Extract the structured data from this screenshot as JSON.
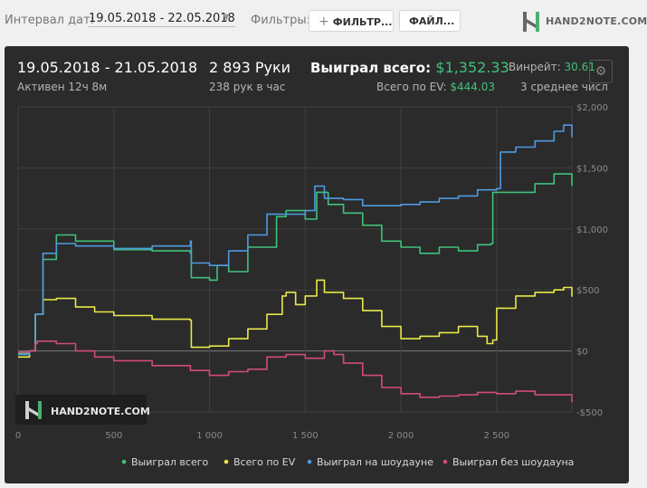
{
  "toolbar": {
    "interval_label": "Интервал дат:",
    "interval_value": "19.05.2018 - 22.05.2018",
    "filters_label": "Фильтры:",
    "filter_button": "ФИЛЬТР...",
    "files_button": "ФАЙЛ..."
  },
  "brand": {
    "logo_text": "HAND2NOTE.COM",
    "watermark_text": "HAND2NOTE.COM"
  },
  "summary": {
    "date_range": "19.05.2018 - 21.05.2018",
    "active": "Активен 12ч 8м",
    "hands": "2 893 Руки",
    "hands_per_hour": "238 рук в час",
    "won_label": "Выиграл всего:",
    "won_value": "$1,352.33",
    "ev_label": "Всего по EV:",
    "ev_value": "$444.03",
    "winrate_label": "Винрейт:",
    "winrate_value": "30.61",
    "winrate_sub": "3 среднее числ"
  },
  "chart_data": {
    "type": "line",
    "xlim": [
      0,
      2893
    ],
    "ylim": [
      -500,
      2000
    ],
    "x_ticks": [
      0,
      500,
      1000,
      1500,
      2000,
      2500
    ],
    "x_tick_labels": [
      "0",
      "500",
      "1 000",
      "1 500",
      "2 000",
      "2 500"
    ],
    "y_ticks": [
      -500,
      0,
      500,
      1000,
      1500,
      2000
    ],
    "y_tick_labels": [
      "-$500",
      "$0",
      "$500",
      "$1,000",
      "$1,500",
      "$2,000"
    ],
    "grid": true,
    "legend_position": "bottom",
    "series": [
      {
        "name": "Выиграл всего",
        "color": "#3fc27a",
        "x": [
          0,
          60,
          90,
          130,
          200,
          300,
          500,
          700,
          900,
          905,
          1000,
          1040,
          1100,
          1200,
          1350,
          1400,
          1500,
          1560,
          1620,
          1700,
          1800,
          1900,
          2000,
          2100,
          2200,
          2300,
          2400,
          2470,
          2480,
          2500,
          2700,
          2800,
          2893
        ],
        "y": [
          -20,
          0,
          300,
          750,
          950,
          900,
          830,
          820,
          800,
          600,
          580,
          700,
          650,
          850,
          1100,
          1150,
          1080,
          1300,
          1200,
          1130,
          1030,
          900,
          850,
          800,
          850,
          820,
          870,
          880,
          1300,
          1300,
          1370,
          1450,
          1352
        ]
      },
      {
        "name": "Всего по EV",
        "color": "#e8e84a",
        "x": [
          0,
          60,
          90,
          130,
          200,
          300,
          400,
          500,
          700,
          900,
          905,
          1000,
          1100,
          1200,
          1300,
          1380,
          1400,
          1450,
          1500,
          1560,
          1600,
          1700,
          1800,
          1900,
          2000,
          2100,
          2200,
          2300,
          2400,
          2450,
          2480,
          2500,
          2600,
          2700,
          2800,
          2850,
          2893
        ],
        "y": [
          -50,
          0,
          300,
          420,
          430,
          360,
          320,
          290,
          260,
          250,
          30,
          40,
          100,
          180,
          300,
          450,
          480,
          380,
          450,
          580,
          480,
          430,
          330,
          200,
          100,
          120,
          150,
          200,
          120,
          60,
          90,
          350,
          450,
          480,
          500,
          520,
          444
        ]
      },
      {
        "name": "Выиграл на шоудауне",
        "color": "#4f9ae0",
        "x": [
          0,
          60,
          90,
          130,
          200,
          300,
          500,
          700,
          900,
          905,
          1000,
          1100,
          1200,
          1300,
          1400,
          1500,
          1550,
          1600,
          1700,
          1800,
          1900,
          2000,
          2100,
          2200,
          2300,
          2400,
          2500,
          2520,
          2600,
          2700,
          2800,
          2850,
          2893
        ],
        "y": [
          -30,
          0,
          300,
          800,
          880,
          860,
          840,
          860,
          900,
          720,
          700,
          820,
          950,
          1120,
          1120,
          1150,
          1350,
          1250,
          1240,
          1190,
          1190,
          1200,
          1220,
          1250,
          1270,
          1320,
          1330,
          1630,
          1670,
          1720,
          1800,
          1850,
          1750
        ]
      },
      {
        "name": "Выиграл без шоудауна",
        "color": "#d24b7a",
        "x": [
          0,
          60,
          90,
          100,
          200,
          300,
          400,
          500,
          700,
          900,
          1000,
          1100,
          1200,
          1300,
          1400,
          1500,
          1600,
          1650,
          1700,
          1800,
          1900,
          2000,
          2100,
          2200,
          2300,
          2400,
          2500,
          2600,
          2700,
          2800,
          2893
        ],
        "y": [
          -10,
          0,
          60,
          80,
          60,
          0,
          -50,
          -80,
          -120,
          -160,
          -200,
          -170,
          -150,
          -50,
          -30,
          -60,
          0,
          -30,
          -100,
          -200,
          -300,
          -350,
          -380,
          -370,
          -360,
          -340,
          -350,
          -330,
          -360,
          -360,
          -420
        ]
      }
    ]
  }
}
